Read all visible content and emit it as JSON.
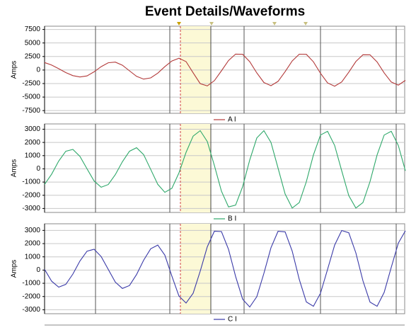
{
  "title": "Event Details/Waveforms",
  "chart_data": [
    {
      "type": "line",
      "ylabel": "Amps",
      "grid": true,
      "ylim": [
        -8000,
        8100
      ],
      "yticks": [
        7500,
        5000,
        2500,
        0,
        -2500,
        -5000,
        -7500
      ],
      "series": [
        {
          "name": "A I",
          "color": "#b33a3a",
          "values": [
            1380,
            920,
            250,
            -470,
            -1030,
            -1290,
            -1090,
            -330,
            620,
            1340,
            1470,
            890,
            -150,
            -1170,
            -1680,
            -1460,
            -580,
            620,
            1670,
            2180,
            1560,
            -510,
            -2510,
            -2940,
            -1960,
            -150,
            1750,
            2940,
            2910,
            1540,
            -540,
            -2300,
            -2890,
            -2100,
            -300,
            1670,
            2930,
            2910,
            1510,
            -600,
            -2390,
            -2990,
            -2200,
            -400,
            1570,
            2830,
            2810,
            1490,
            -520,
            -2220,
            -2790,
            -1910
          ]
        }
      ]
    },
    {
      "type": "line",
      "ylabel": "Amps",
      "grid": true,
      "ylim": [
        -3300,
        3400
      ],
      "yticks": [
        3000,
        2000,
        1000,
        0,
        -1000,
        -2000,
        -3000
      ],
      "series": [
        {
          "name": "B I",
          "color": "#2ea86a",
          "values": [
            -1180,
            -400,
            590,
            1330,
            1470,
            940,
            0,
            -920,
            -1390,
            -1190,
            -440,
            540,
            1330,
            1600,
            1080,
            -40,
            -1170,
            -1780,
            -1470,
            -300,
            1250,
            2480,
            2890,
            2070,
            260,
            -1690,
            -2880,
            -2750,
            -1340,
            670,
            2340,
            2890,
            2000,
            60,
            -1900,
            -2970,
            -2550,
            -970,
            1050,
            2560,
            2840,
            1770,
            -150,
            -2030,
            -2970,
            -2550,
            -970,
            1050,
            2560,
            2840,
            1770,
            -150
          ]
        }
      ]
    },
    {
      "type": "line",
      "ylabel": "Amps",
      "grid": true,
      "ylim": [
        -3300,
        3500
      ],
      "yticks": [
        3000,
        2000,
        1000,
        0,
        -1000,
        -2000,
        -3000
      ],
      "series": [
        {
          "name": "C I",
          "color": "#3a3aa8",
          "values": [
            50,
            -840,
            -1290,
            -1080,
            -300,
            690,
            1430,
            1570,
            1020,
            50,
            -910,
            -1390,
            -1170,
            -340,
            740,
            1610,
            1890,
            1130,
            -470,
            -1970,
            -2490,
            -1750,
            -80,
            1760,
            2940,
            2910,
            1570,
            -480,
            -2210,
            -2790,
            -2010,
            -250,
            1690,
            2930,
            2890,
            1440,
            -710,
            -2410,
            -2740,
            -1750,
            50,
            1890,
            2990,
            2820,
            1300,
            -810,
            -2420,
            -2740,
            -1690,
            200,
            2040,
            2970
          ]
        }
      ]
    }
  ]
}
